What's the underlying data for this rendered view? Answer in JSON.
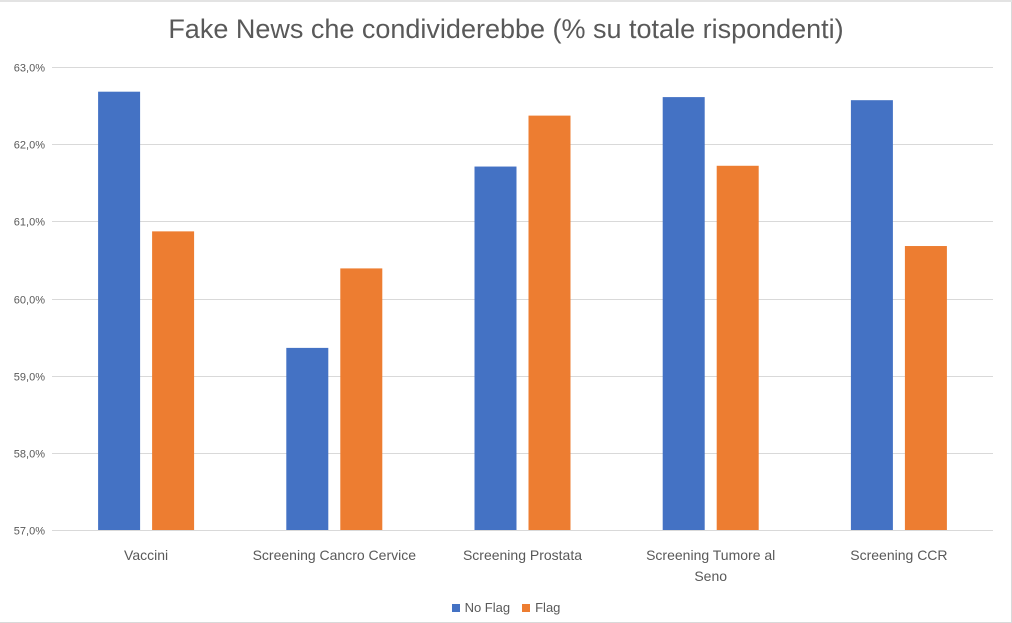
{
  "chart_data": {
    "type": "bar",
    "title": "Fake News che condividerebbe (% su totale rispondenti)",
    "categories": [
      "Vaccini",
      "Screening Cancro Cervice",
      "Screening Prostata",
      "Screening Tumore al Seno",
      "Screening CCR"
    ],
    "category_lines": [
      [
        "Vaccini"
      ],
      [
        "Screening Cancro Cervice"
      ],
      [
        "Screening Prostata"
      ],
      [
        "Screening Tumore al",
        "Seno"
      ],
      [
        "Screening CCR"
      ]
    ],
    "series": [
      {
        "name": "No Flag",
        "color": "#4472C4",
        "values": [
          62.68,
          59.36,
          61.71,
          62.61,
          62.57
        ]
      },
      {
        "name": "Flag",
        "color": "#ED7D31",
        "values": [
          60.87,
          60.39,
          62.37,
          61.72,
          60.68
        ]
      }
    ],
    "ylim": [
      57.0,
      63.0
    ],
    "yticks": [
      "57,0%",
      "58,0%",
      "59,0%",
      "60,0%",
      "61,0%",
      "62,0%",
      "63,0%"
    ],
    "grid": true,
    "legend_position": "bottom",
    "xlabel": "",
    "ylabel": ""
  }
}
